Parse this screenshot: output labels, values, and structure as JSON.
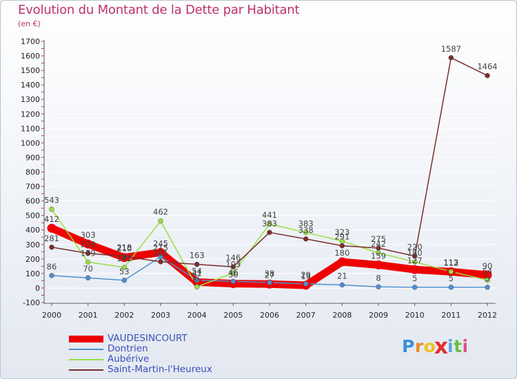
{
  "chart_data": {
    "type": "line",
    "title": "Evolution du Montant de la Dette par Habitant",
    "subtitle": "(en €)",
    "xlabel": "",
    "ylabel": "",
    "ylim": [
      -100,
      1700
    ],
    "y_ticks": [
      "-100",
      "0",
      "100",
      "200",
      "300",
      "400",
      "500",
      "600",
      "700",
      "800",
      "900",
      "1000",
      "1100",
      "1200",
      "1300",
      "1400",
      "1500",
      "1600",
      "1700"
    ],
    "categories": [
      "2000",
      "2001",
      "2002",
      "2003",
      "2004",
      "2005",
      "2006",
      "2007",
      "2008",
      "2009",
      "2010",
      "2011",
      "2012"
    ],
    "series": [
      {
        "name": "VAUDESINCOURT",
        "color": "#ee0000",
        "values": [
          412,
          303,
          210,
          245,
          41,
          30,
          27,
          19,
          180,
          159,
          127,
          112,
          90
        ]
      },
      {
        "name": "Dontrien",
        "color": "#4f8fcf",
        "values": [
          86,
          70,
          53,
          215,
          54,
          46,
          38,
          29,
          21,
          8,
          5,
          5,
          5
        ]
      },
      {
        "name": "Aubérive",
        "color": "#99dd44",
        "values": [
          543,
          179,
          142,
          462,
          8,
          103,
          441,
          383,
          323,
          242,
          180,
          113,
          54
        ]
      },
      {
        "name": "Saint-Martin-l'Heureux",
        "color": "#7a2d2d",
        "values": [
          281,
          239,
          218,
          181,
          163,
          146,
          383,
          338,
          291,
          275,
          220,
          1587,
          1464
        ]
      }
    ]
  },
  "logo": {
    "letters": [
      "P",
      "r",
      "o",
      "x",
      "i",
      "t",
      "i"
    ]
  }
}
